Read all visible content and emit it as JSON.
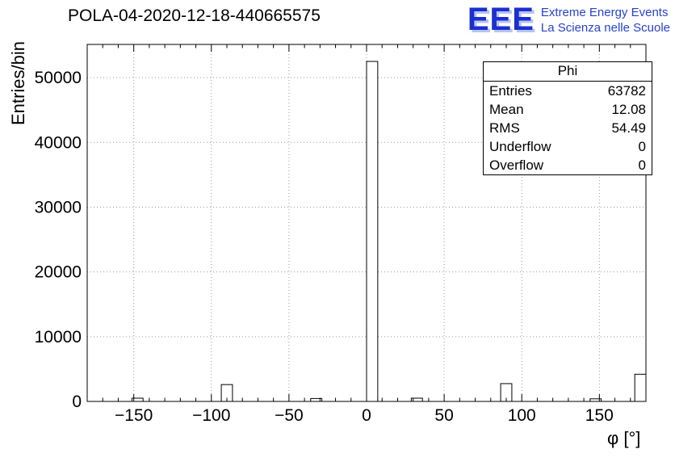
{
  "header": {
    "title": "POLA-04-2020-12-18-440665575"
  },
  "logo": {
    "eee": "EEE",
    "line1": "Extreme Energy Events",
    "line2": "La Scienza nelle Scuole",
    "color": "#1b2fd0"
  },
  "stats": {
    "title": "Phi",
    "rows": [
      {
        "label": "Entries",
        "value": "63782"
      },
      {
        "label": "Mean",
        "value": "12.08"
      },
      {
        "label": "RMS",
        "value": "54.49"
      },
      {
        "label": "Underflow",
        "value": "0"
      },
      {
        "label": "Overflow",
        "value": "0"
      }
    ]
  },
  "chart_data": {
    "type": "bar",
    "title": "POLA-04-2020-12-18-440665575",
    "xlabel": "φ [°]",
    "ylabel": "Entries/bin",
    "xlim": [
      -180,
      180
    ],
    "ylim": [
      0,
      55125
    ],
    "grid": true,
    "bin_width": 7.2,
    "bins": [
      {
        "x_low": -151.2,
        "value": 500
      },
      {
        "x_low": -93.6,
        "value": 2600
      },
      {
        "x_low": -36.0,
        "value": 450
      },
      {
        "x_low": 0.0,
        "value": 52500
      },
      {
        "x_low": 28.8,
        "value": 500
      },
      {
        "x_low": 86.4,
        "value": 2750
      },
      {
        "x_low": 144.0,
        "value": 400
      },
      {
        "x_low": 172.8,
        "value": 4200
      }
    ],
    "xticks": [
      {
        "value": -150,
        "label": "−150"
      },
      {
        "value": -100,
        "label": "−100"
      },
      {
        "value": -50,
        "label": "−50"
      },
      {
        "value": 0,
        "label": "0"
      },
      {
        "value": 50,
        "label": "50"
      },
      {
        "value": 100,
        "label": "100"
      },
      {
        "value": 150,
        "label": "150"
      }
    ],
    "yticks": [
      {
        "value": 0,
        "label": "0"
      },
      {
        "value": 10000,
        "label": "10000"
      },
      {
        "value": 20000,
        "label": "20000"
      },
      {
        "value": 30000,
        "label": "30000"
      },
      {
        "value": 40000,
        "label": "40000"
      },
      {
        "value": 50000,
        "label": "50000"
      }
    ],
    "x_minor_step": 10,
    "y_minor_step": 2000,
    "colors": {
      "axis": "#000000",
      "grid": "#999999",
      "bar_fill": "#ffffff",
      "bar_stroke": "#000000"
    }
  }
}
